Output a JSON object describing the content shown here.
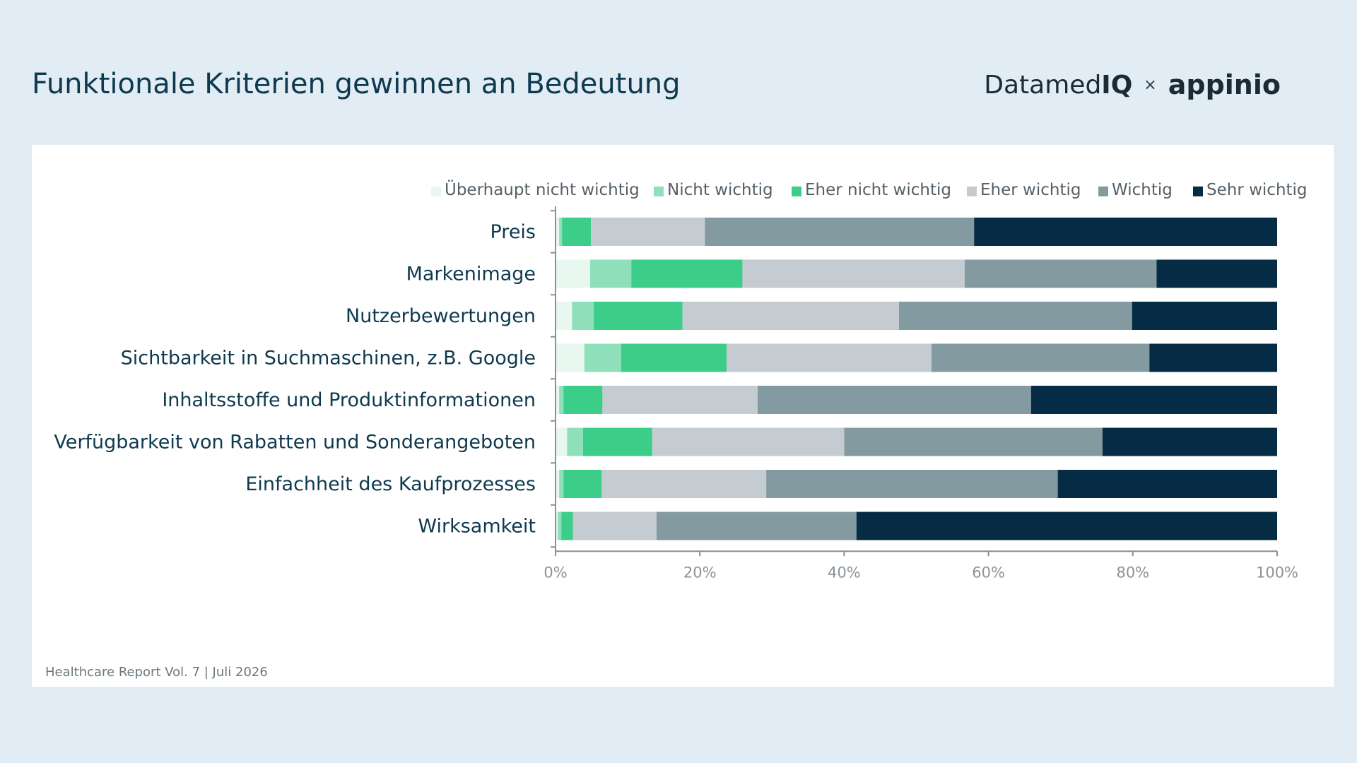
{
  "header": {
    "title": "Funktionale Kriterien gewinnen an Bedeutung",
    "logo_left_main": "Datamed",
    "logo_left_accent": "IQ",
    "logo_separator": "×",
    "logo_right": "appinio"
  },
  "footer": {
    "note": "Healthcare Report Vol. 7 | Juli 2026"
  },
  "chart_data": {
    "type": "bar",
    "orientation": "horizontal",
    "stacked": true,
    "percent": true,
    "categories": [
      "Preis",
      "Markenimage",
      "Nutzerbewertungen",
      "Sichtbarkeit in Suchmaschinen, z.B. Google",
      "Inhaltsstoffe und Produktinformationen",
      "Verfügbarkeit von Rabatten und Sonderangeboten",
      "Einfachheit des Kaufprozesses",
      "Wirksamkeit"
    ],
    "series": [
      {
        "name": "Überhaupt nicht wichtig",
        "color": "#e8f7ef",
        "values": [
          0.5,
          4.8,
          2.3,
          4.0,
          0.5,
          1.6,
          0.5,
          0.3
        ]
      },
      {
        "name": "Nicht wichtig",
        "color": "#8fdfba",
        "values": [
          0.4,
          5.7,
          3.0,
          5.1,
          0.6,
          2.2,
          0.6,
          0.5
        ]
      },
      {
        "name": "Eher nicht wichtig",
        "color": "#3ccd88",
        "values": [
          4.0,
          15.4,
          12.3,
          14.6,
          5.4,
          9.6,
          5.3,
          1.6
        ]
      },
      {
        "name": "Eher wichtig",
        "color": "#c4cbd1",
        "values": [
          15.8,
          30.8,
          30.0,
          28.4,
          21.5,
          26.6,
          22.8,
          11.6
        ]
      },
      {
        "name": "Wichtig",
        "color": "#849aa1",
        "values": [
          37.3,
          26.6,
          32.3,
          30.2,
          37.9,
          35.8,
          40.4,
          27.7
        ]
      },
      {
        "name": "Sehr wichtig",
        "color": "#052c44",
        "values": [
          42.0,
          16.7,
          20.1,
          17.7,
          34.1,
          24.2,
          30.4,
          58.3
        ]
      }
    ],
    "xlim": [
      0,
      100
    ],
    "xticks": [
      "0%",
      "20%",
      "40%",
      "60%",
      "80%",
      "100%"
    ],
    "legend_position": "top-right"
  }
}
